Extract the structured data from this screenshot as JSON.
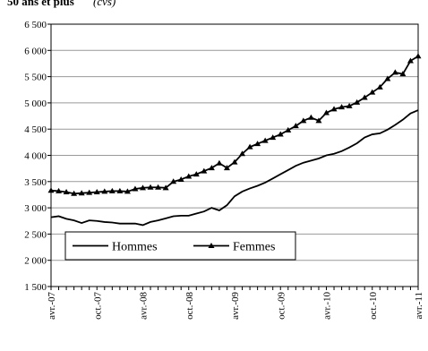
{
  "chart_data": {
    "type": "line",
    "title": "50 ans et plus",
    "subtitle": "(cvs)",
    "categories": [
      "avr.-07",
      null,
      null,
      null,
      null,
      null,
      "oct.-07",
      null,
      null,
      null,
      null,
      null,
      "avr.-08",
      null,
      null,
      null,
      null,
      null,
      "oct.-08",
      null,
      null,
      null,
      null,
      null,
      "avr.-09",
      null,
      null,
      null,
      null,
      null,
      "oct.-09",
      null,
      null,
      null,
      null,
      null,
      "avr.-10",
      null,
      null,
      null,
      null,
      null,
      "oct.-10",
      null,
      null,
      null,
      null,
      null,
      "avr.-11"
    ],
    "series": [
      {
        "name": "Hommes",
        "color": "#000000",
        "marker": "none",
        "values": [
          2820,
          2840,
          2790,
          2760,
          2710,
          2760,
          2750,
          2730,
          2720,
          2700,
          2700,
          2700,
          2670,
          2730,
          2760,
          2800,
          2840,
          2850,
          2850,
          2890,
          2930,
          3000,
          2950,
          3050,
          3220,
          3310,
          3370,
          3420,
          3480,
          3560,
          3640,
          3720,
          3800,
          3860,
          3900,
          3940,
          4000,
          4030,
          4080,
          4150,
          4230,
          4340,
          4400,
          4420,
          4490,
          4580,
          4680,
          4800,
          4860
        ]
      },
      {
        "name": "Femmes",
        "color": "#000000",
        "marker": "triangle",
        "values": [
          3330,
          3320,
          3300,
          3270,
          3280,
          3290,
          3300,
          3310,
          3320,
          3320,
          3310,
          3360,
          3380,
          3390,
          3390,
          3380,
          3500,
          3540,
          3600,
          3640,
          3700,
          3760,
          3850,
          3760,
          3870,
          4030,
          4160,
          4220,
          4280,
          4340,
          4400,
          4480,
          4560,
          4660,
          4720,
          4660,
          4810,
          4880,
          4920,
          4940,
          5010,
          5100,
          5200,
          5300,
          5460,
          5580,
          5550,
          5800,
          5890
        ]
      }
    ],
    "ylim": [
      1500,
      6500
    ],
    "yticks": [
      {
        "value": 1500,
        "label": "1 500"
      },
      {
        "value": 2000,
        "label": "2 000"
      },
      {
        "value": 2500,
        "label": "2 500"
      },
      {
        "value": 3000,
        "label": "3 000"
      },
      {
        "value": 3500,
        "label": "3 500"
      },
      {
        "value": 4000,
        "label": "4 000"
      },
      {
        "value": 4500,
        "label": "4 500"
      },
      {
        "value": 5000,
        "label": "5 000"
      },
      {
        "value": 5500,
        "label": "5 500"
      },
      {
        "value": 6000,
        "label": "6 000"
      },
      {
        "value": 6500,
        "label": "6 500"
      }
    ],
    "grid": true,
    "legend": "lower left"
  }
}
